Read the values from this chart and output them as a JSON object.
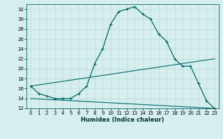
{
  "xlabel": "Humidex (Indice chaleur)",
  "background_color": "#d6eeee",
  "grid_color": "#b8d8d8",
  "line_color": "#006666",
  "xlim": [
    -0.5,
    23.5
  ],
  "ylim": [
    12,
    33
  ],
  "xticks": [
    0,
    1,
    2,
    3,
    4,
    5,
    6,
    7,
    8,
    9,
    10,
    11,
    12,
    13,
    14,
    15,
    16,
    17,
    18,
    19,
    20,
    21,
    22,
    23
  ],
  "yticks": [
    12,
    14,
    16,
    18,
    20,
    22,
    24,
    26,
    28,
    30,
    32
  ],
  "curve1_x": [
    0,
    1,
    2,
    3,
    4,
    5,
    6,
    7,
    8,
    9,
    10,
    11,
    12,
    13,
    14,
    15,
    16,
    17,
    18,
    19,
    20,
    21,
    22,
    23
  ],
  "curve1_y": [
    16.5,
    15.0,
    14.5,
    14.0,
    14.0,
    14.0,
    15.0,
    16.5,
    21.0,
    24.0,
    29.0,
    31.5,
    32.0,
    32.5,
    31.0,
    30.0,
    27.0,
    25.5,
    22.0,
    20.5,
    20.5,
    17.0,
    13.5,
    12.0
  ],
  "curve2_x": [
    0,
    23
  ],
  "curve2_y": [
    16.5,
    22.0
  ],
  "curve3_x": [
    0,
    23
  ],
  "curve3_y": [
    14.0,
    12.0
  ],
  "tick_fontsize": 5,
  "xlabel_fontsize": 6,
  "xlabel_color": "#003333"
}
